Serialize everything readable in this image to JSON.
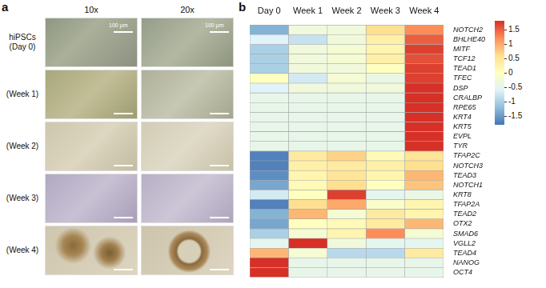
{
  "panel_a": {
    "label": "a",
    "columns": [
      "10x",
      "20x"
    ],
    "rows": [
      [
        "hiPSCs",
        "(Day 0)"
      ],
      [
        "(Week 1)"
      ],
      [
        "(Week 2)"
      ],
      [
        "(Week 3)"
      ],
      [
        "(Week 4)"
      ]
    ],
    "scale_bar": "100 μm"
  },
  "chart_data": {
    "type": "heatmap",
    "panel_label": "b",
    "categories": [
      "Day 0",
      "Week 1",
      "Week 2",
      "Week 3",
      "Week 4"
    ],
    "rows": [
      "NOTCH2",
      "BHLHE40",
      "MITF",
      "TCF12",
      "TEAD1",
      "TFEC",
      "DSP",
      "CRALBP",
      "RPE65",
      "KRT4",
      "KRT5",
      "EVPL",
      "TYR",
      "TFAP2C",
      "NOTCH3",
      "TEAD3",
      "NOTCH1",
      "KRT8",
      "TFAP2A",
      "TEAD2",
      "OTX2",
      "SMAD6",
      "VGLL2",
      "TEAD4",
      "NANOG",
      "OCT4"
    ],
    "cells": [
      [
        -1.3,
        -0.3,
        -0.3,
        0.6,
        1.2
      ],
      [
        -0.6,
        -0.8,
        -0.3,
        0.3,
        1.5
      ],
      [
        -1.0,
        -0.3,
        -0.2,
        0.2,
        1.7
      ],
      [
        -1.0,
        -0.3,
        -0.2,
        0.3,
        1.6
      ],
      [
        -1.0,
        -0.3,
        -0.3,
        0.0,
        1.7
      ],
      [
        0.0,
        -0.7,
        -0.2,
        -0.4,
        1.7
      ],
      [
        -0.6,
        -0.3,
        -0.3,
        -0.3,
        1.8
      ],
      [
        -0.45,
        -0.45,
        -0.45,
        -0.45,
        1.8
      ],
      [
        -0.45,
        -0.45,
        -0.45,
        -0.45,
        1.8
      ],
      [
        -0.45,
        -0.45,
        -0.45,
        -0.45,
        1.8
      ],
      [
        -0.45,
        -0.45,
        -0.45,
        -0.45,
        1.8
      ],
      [
        -0.45,
        -0.45,
        -0.45,
        -0.45,
        1.8
      ],
      [
        -0.45,
        -0.45,
        -0.45,
        -0.45,
        1.8
      ],
      [
        -1.7,
        0.4,
        0.7,
        0.1,
        0.5
      ],
      [
        -1.7,
        0.3,
        0.4,
        0.3,
        0.6
      ],
      [
        -1.6,
        0.2,
        0.5,
        0.2,
        0.9
      ],
      [
        -1.4,
        0.1,
        0.6,
        0.0,
        0.8
      ],
      [
        -0.7,
        0.0,
        1.7,
        -0.5,
        -0.4
      ],
      [
        -1.7,
        0.6,
        1.0,
        -0.1,
        0.2
      ],
      [
        -1.3,
        0.9,
        -0.2,
        0.4,
        0.2
      ],
      [
        -1.4,
        0.0,
        0.1,
        0.4,
        0.9
      ],
      [
        -1.0,
        -0.2,
        0.2,
        1.2,
        -0.2
      ],
      [
        -0.5,
        1.8,
        -0.3,
        -0.5,
        -0.5
      ],
      [
        0.9,
        -0.2,
        -0.9,
        -0.9,
        0.4
      ],
      [
        1.8,
        -0.45,
        -0.45,
        -0.45,
        -0.45
      ],
      [
        1.8,
        -0.45,
        -0.45,
        -0.45,
        -0.45
      ]
    ],
    "colorbar": {
      "range": [
        -1.8,
        1.8
      ],
      "ticks": [
        -1.5,
        -1,
        -0.5,
        0,
        0.5,
        1,
        1.5
      ],
      "colors": [
        "#4575b4",
        "#91bfdb",
        "#e0f3f8",
        "#ffffbf",
        "#fee090",
        "#fc8d59",
        "#d73027"
      ]
    }
  }
}
